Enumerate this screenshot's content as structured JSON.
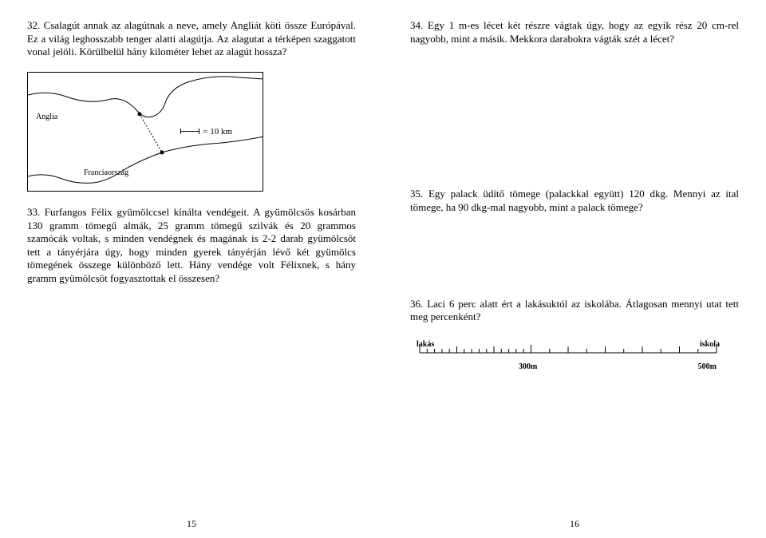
{
  "left": {
    "p32": "32. Csalagút annak az alagútnak a neve, amely Angliát köti össze Európával. Ez a világ leghosszabb tenger alatti alagútja. Az alagutat a térképen szaggatott vonal jelöli. Körülbelül hány kilométer lehet az alagút hossza?",
    "map": {
      "label_anglia": "Anglia",
      "label_france": "Franciaország",
      "scale_text": "= 10 km"
    },
    "p33": "33. Furfangos Félix gyümölccsel kínálta vendégeit. A gyümölcsös kosárban 130 gramm tömegű almák, 25 gramm tömegű szilvák és 20 grammos szamócák voltak, s minden vendégnek és magának is 2-2 darab gyümölcsöt tett a tányérjára úgy, hogy minden gyerek tányérján lévő két gyümölcs tömegének összege különböző lett. Hány vendége volt Félixnek, s hány gramm gyümölcsöt fogyasztottak el összesen?",
    "page_num": "15"
  },
  "right": {
    "p34": "34. Egy 1 m-es lécet két részre vágtak úgy, hogy az egyik rész 20 cm-rel nagyobb, mint a másik. Mekkora darabokra vágták szét a lécet?",
    "p35": "35. Egy palack üdítő tömege (palackkal együtt) 120 dkg. Mennyi az ital tömege, ha 90 dkg-mal nagyobb, mint a palack tömege?",
    "p36": "36. Laci 6 perc alatt ért a lakásuktól az iskolába. Átlagosan mennyi utat tett meg percenként?",
    "ruler": {
      "label_lakas": "lakás",
      "label_iskola": "iskola",
      "label_300": "300m",
      "label_500": "500m"
    },
    "page_num": "16"
  }
}
